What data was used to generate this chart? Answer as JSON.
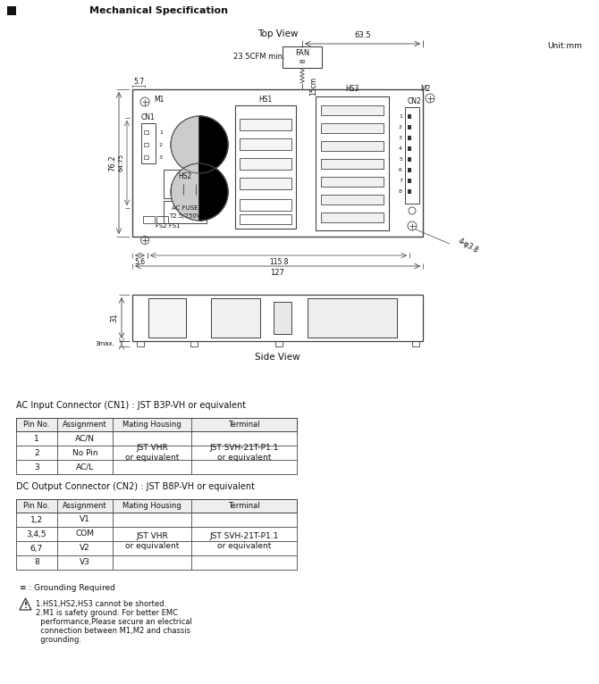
{
  "title": "Mechanical Specification",
  "unit": "Unit:mm",
  "top_view_label": "Top View",
  "side_view_label": "Side View",
  "fan_label": "FAN",
  "fan_flow": "23.5CFM min.",
  "fan_cable": "15cm",
  "dim_127": "127",
  "dim_115_8": "115.8",
  "dim_63_5": "63.5",
  "dim_76_2": "76.2",
  "dim_64_75": "64.75",
  "dim_5_6": "5.6",
  "dim_5_7": "5.7",
  "dim_4_phi_3_8": "4-φ3.8",
  "dim_31": "31",
  "dim_3max": "3max.",
  "label_hs1": "HS1",
  "label_hs2": "HS2",
  "label_hs3": "HS3",
  "label_m1": "M1",
  "label_m2": "M2",
  "label_cn1": "CN1",
  "label_cn2": "CN2",
  "label_fs2fs1": "FS2 FS1",
  "ac_table_title": "AC Input Connector (CN1) : JST B3P-VH or equivalent",
  "ac_headers": [
    "Pin No.",
    "Assignment",
    "Mating Housing",
    "Terminal"
  ],
  "ac_rows": [
    [
      "1",
      "AC/N",
      "",
      ""
    ],
    [
      "2",
      "No Pin",
      "JST VHR\nor equivalent",
      "JST SVH-21T-P1.1\nor equivalent"
    ],
    [
      "3",
      "AC/L",
      "",
      ""
    ]
  ],
  "dc_table_title": "DC Output Connector (CN2) : JST B8P-VH or equivalent",
  "dc_headers": [
    "Pin No.",
    "Assignment",
    "Mating Housing",
    "Terminal"
  ],
  "dc_rows": [
    [
      "1,2",
      "V1",
      "",
      ""
    ],
    [
      "3,4,5",
      "COM",
      "JST VHR\nor equivalent",
      "JST SVH-21T-P1.1\nor equivalent"
    ],
    [
      "6,7",
      "V2",
      "",
      ""
    ],
    [
      "8",
      "V3",
      "",
      ""
    ]
  ],
  "note_ground": "≡ : Grounding Required",
  "note_warning_lines": [
    "1.HS1,HS2,HS3 cannot be shorted.",
    "2.M1 is safety ground. For better EMC",
    "  performance,Please secure an electrical",
    "  connection between M1,M2 and chassis",
    "  grounding."
  ],
  "bg_color": "#ffffff",
  "line_color": "#444444",
  "text_color": "#111111"
}
